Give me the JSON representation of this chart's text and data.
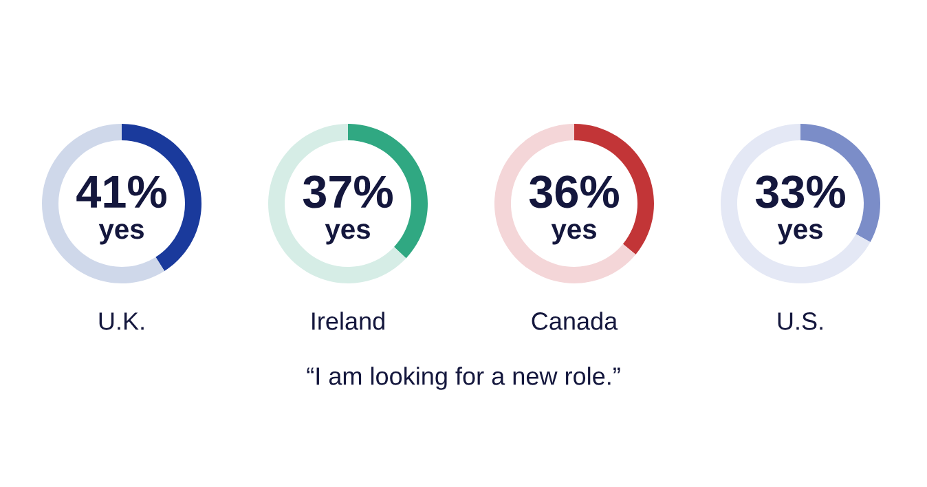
{
  "chart_data": [
    {
      "type": "donut",
      "title": "U.K.",
      "categories": [
        "yes",
        null
      ],
      "values": [
        41,
        59
      ],
      "colors": [
        "#1a3a9c",
        "#cfd8ea"
      ],
      "value_labels": [
        "41%",
        null
      ]
    },
    {
      "type": "donut",
      "title": "Ireland",
      "categories": [
        "yes",
        null
      ],
      "values": [
        37,
        63
      ],
      "colors": [
        "#30a882",
        "#d6ede6"
      ],
      "value_labels": [
        "37%",
        null
      ]
    },
    {
      "type": "donut",
      "title": "Canada",
      "categories": [
        "yes",
        null
      ],
      "values": [
        36,
        64
      ],
      "colors": [
        "#c23537",
        "#f4d6d8"
      ],
      "value_labels": [
        "36%",
        null
      ]
    },
    {
      "type": "donut",
      "title": "U.S.",
      "categories": [
        "yes",
        null
      ],
      "values": [
        33,
        67
      ],
      "colors": [
        "#7b8dc8",
        "#e4e8f5"
      ],
      "value_labels": [
        "33%",
        null
      ]
    },
    {
      "type": "other",
      "title": "“I am looking for a new role.”"
    }
  ]
}
